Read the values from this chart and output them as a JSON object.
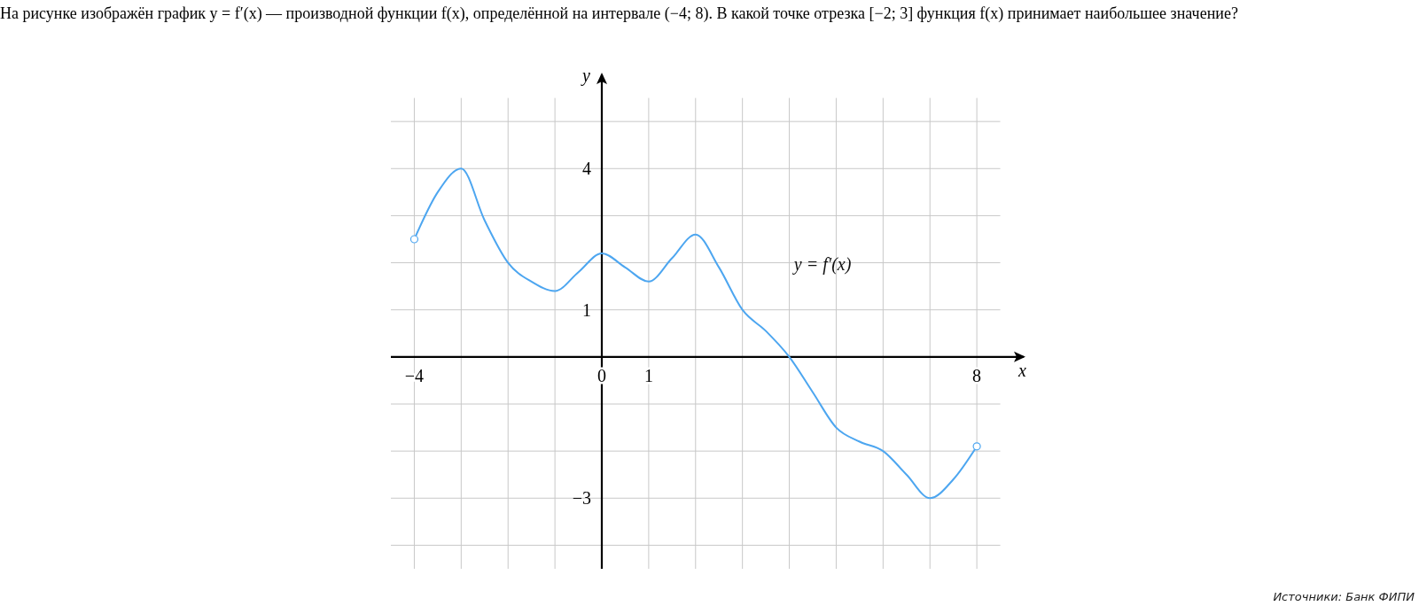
{
  "chart_data": {
    "type": "line",
    "title": "На рисунке изображён график y = f′(x) — производной функции f(x), определённой на интервале (−4; 8). В какой точке отрезка [−2; 3] функция f(x) принимает наибольшее значение?",
    "xlabel": "x",
    "ylabel": "y",
    "annotations": [
      "Источники: Банк ФИПИ"
    ],
    "xlim": [
      -4.5,
      9
    ],
    "ylim": [
      -4.5,
      6
    ],
    "xticks": [
      {
        "value": -4,
        "label": "−4"
      },
      {
        "value": -3,
        "label": null
      },
      {
        "value": -2,
        "label": null
      },
      {
        "value": -1,
        "label": null
      },
      0,
      1,
      {
        "value": 2,
        "label": null
      },
      {
        "value": 3,
        "label": null
      },
      {
        "value": 4,
        "label": null
      },
      {
        "value": 5,
        "label": null
      },
      {
        "value": 6,
        "label": null
      },
      {
        "value": 7,
        "label": null
      },
      8
    ],
    "yticks": [
      {
        "value": -4,
        "label": null
      },
      {
        "value": -3,
        "label": "−3"
      },
      {
        "value": -2,
        "label": null
      },
      {
        "value": -1,
        "label": null
      },
      {
        "value": 1,
        "label": "1"
      },
      {
        "value": 2,
        "label": null
      },
      {
        "value": 3,
        "label": null
      },
      4,
      {
        "value": 5,
        "label": null
      }
    ],
    "grid": true,
    "series": [
      {
        "name": "y = f′(x)",
        "color": "#4da6f0",
        "x": [
          -4,
          -3.5,
          -3,
          -2.5,
          -2,
          -1.5,
          -1,
          -0.5,
          0,
          0.5,
          1,
          1.5,
          2,
          2.5,
          3,
          3.5,
          4,
          4.5,
          5,
          5.5,
          6,
          6.5,
          7,
          7.5,
          8
        ],
        "values": [
          2.5,
          3.5,
          4,
          2.9,
          2,
          1.6,
          1.4,
          1.8,
          2.2,
          1.9,
          1.6,
          2.1,
          2.6,
          1.9,
          1,
          0.55,
          0,
          -0.75,
          -1.5,
          -1.8,
          -2,
          -2.5,
          -3,
          -2.6,
          -1.9
        ]
      }
    ]
  }
}
